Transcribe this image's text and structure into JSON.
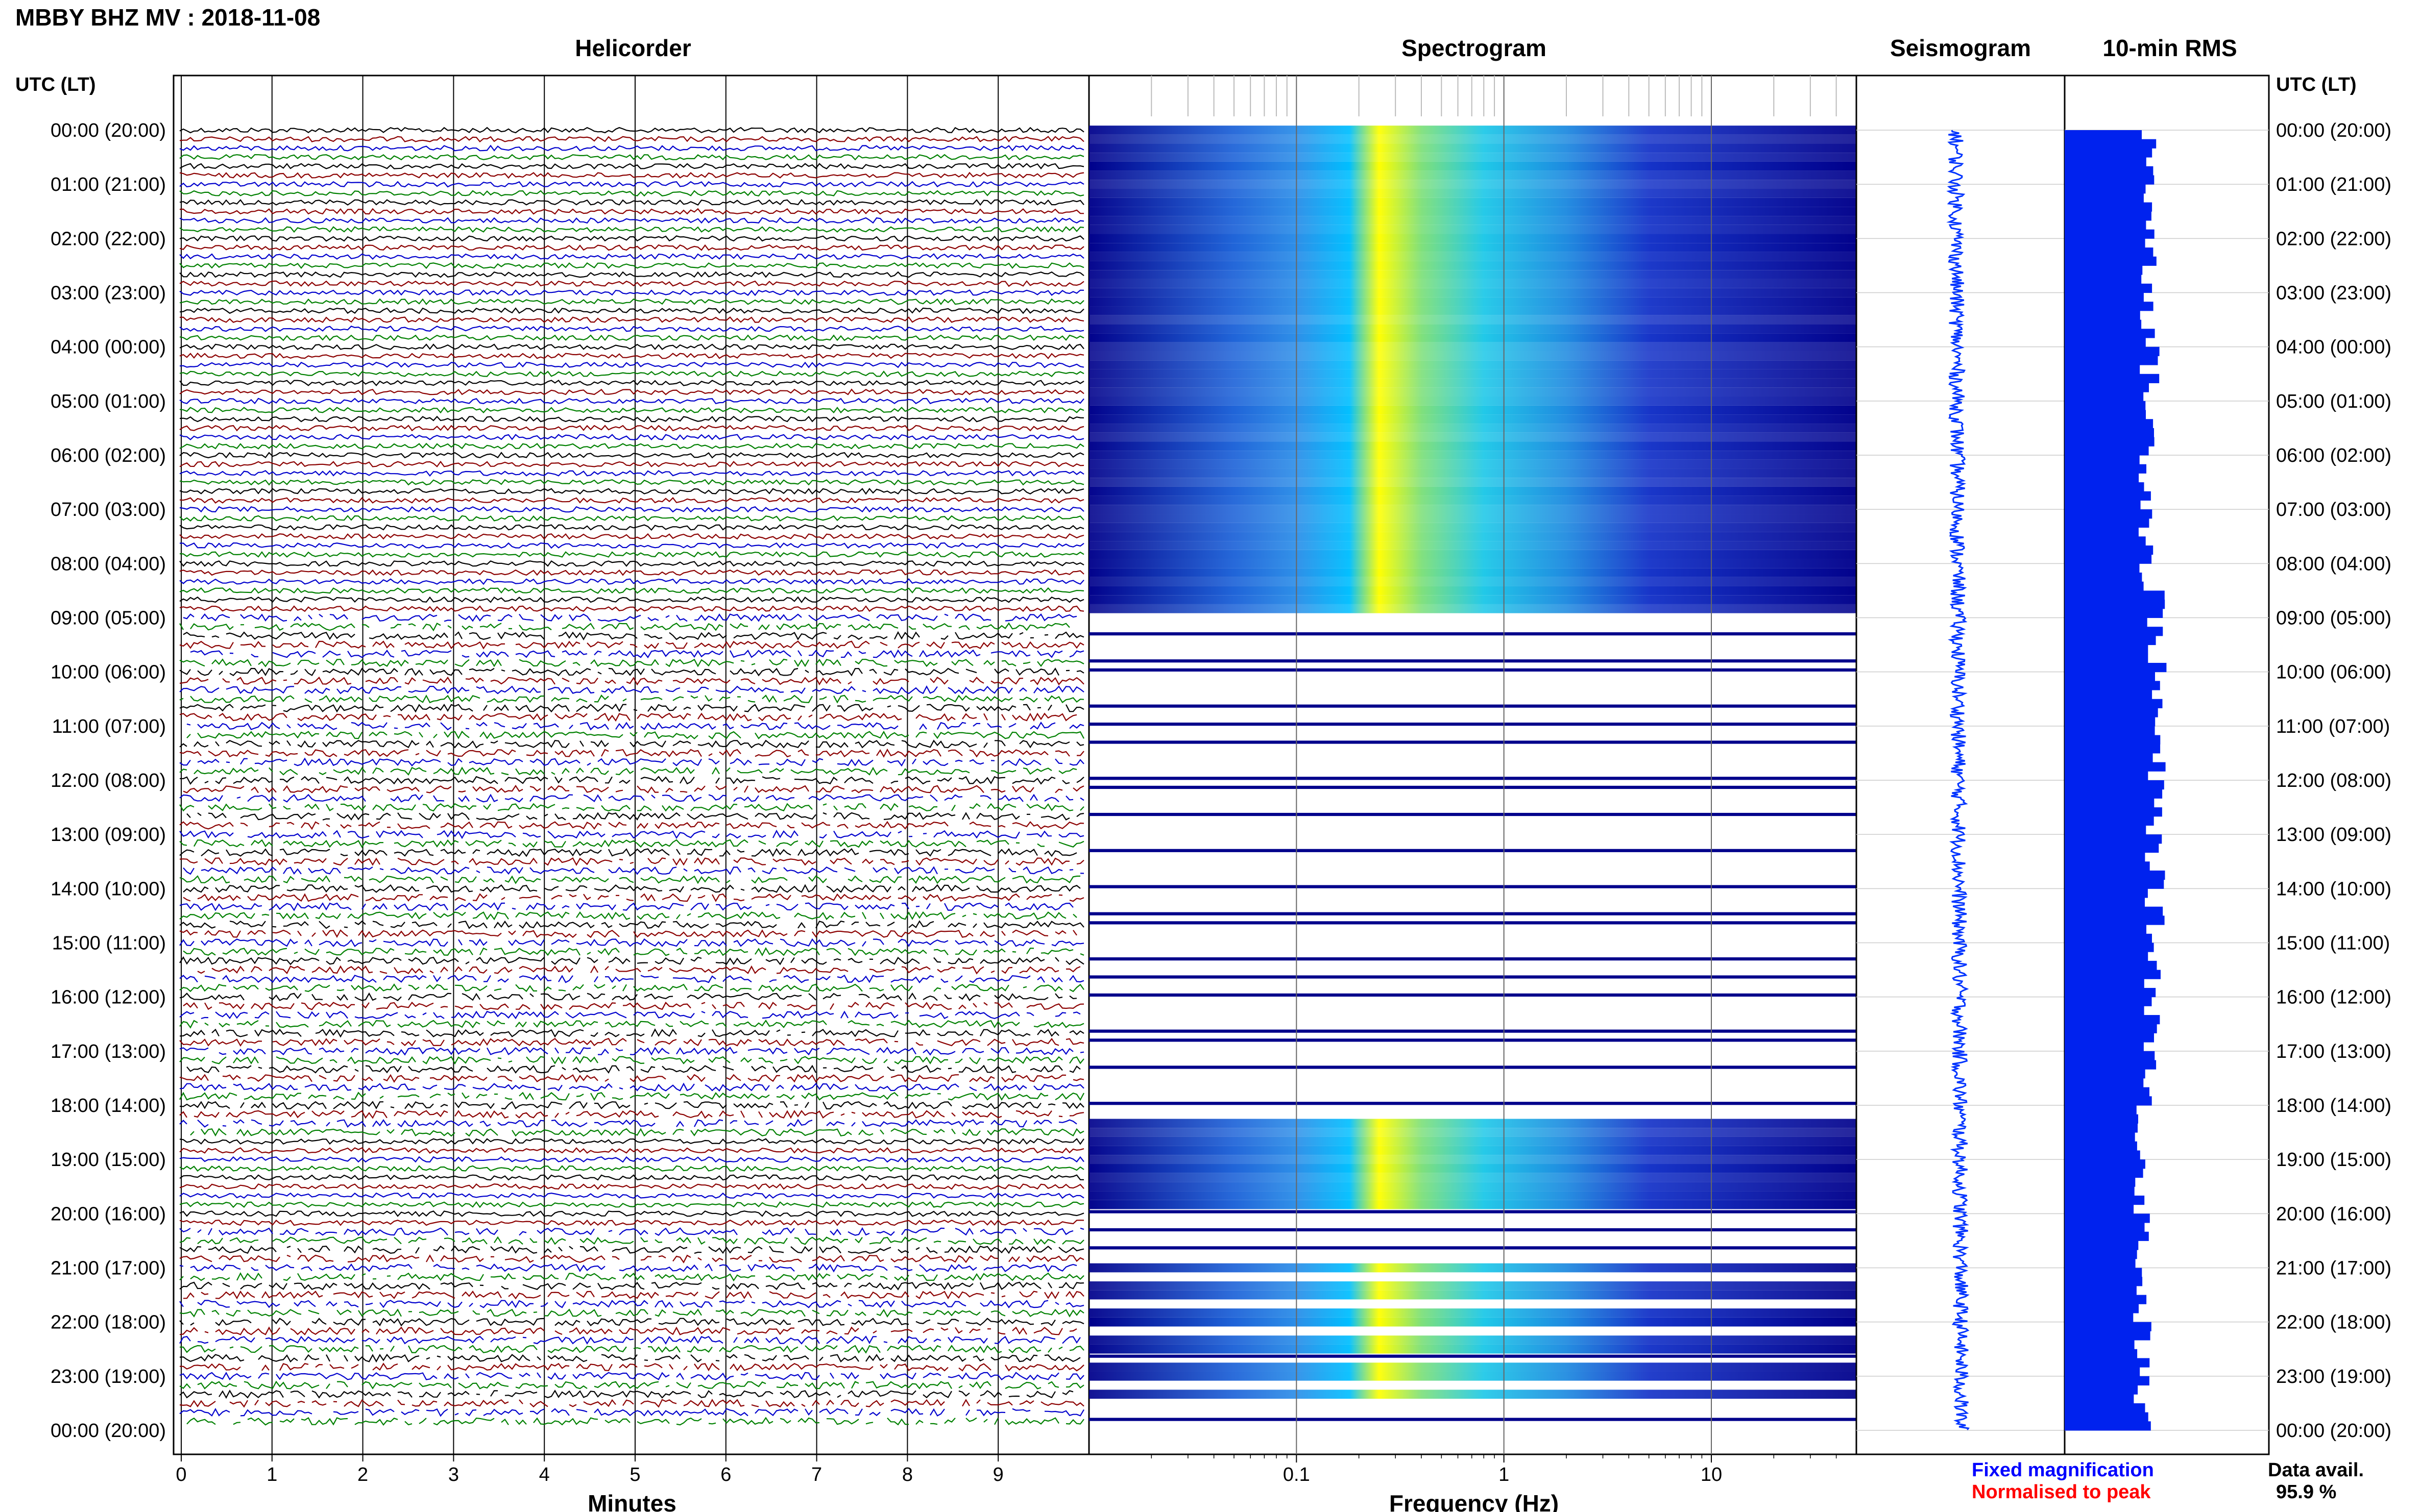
{
  "header": {
    "title": "MBBY BHZ MV : 2018-11-08",
    "utc_label": "UTC (LT)"
  },
  "panels": {
    "helicorder": "Helicorder",
    "spectrogram": "Spectrogram",
    "seismogram": "Seismogram",
    "rms": "10-min RMS"
  },
  "footer": {
    "fixed": "Fixed magnification",
    "normalised": "Normalised to peak",
    "avail_label": "Data avail.",
    "avail_value": "95.9 %"
  },
  "colors": {
    "trace_cycle": [
      "#000000",
      "#8b0000",
      "#0000cd",
      "#008000"
    ],
    "seismogram": "#0033ff",
    "rms": "#0022ee",
    "fixed_text": "#0000ff",
    "normalised_text": "#ff0000",
    "spec_low": "#00008b",
    "spec_mid": "#00bfff",
    "spec_high": "#ffff00"
  },
  "chart_data": [
    {
      "type": "line",
      "name": "helicorder",
      "title": "Helicorder",
      "xlabel": "Minutes",
      "xticks": [
        "0",
        "1",
        "2",
        "3",
        "4",
        "5",
        "6",
        "7",
        "8",
        "9"
      ],
      "xlim": [
        0,
        10
      ],
      "ylabels": [
        "00:00 (20:00)",
        "01:00 (21:00)",
        "02:00 (22:00)",
        "03:00 (23:00)",
        "04:00 (00:00)",
        "05:00 (01:00)",
        "06:00 (02:00)",
        "07:00 (03:00)",
        "08:00 (04:00)",
        "09:00 (05:00)",
        "10:00 (06:00)",
        "11:00 (07:00)",
        "12:00 (08:00)",
        "13:00 (09:00)",
        "14:00 (10:00)",
        "15:00 (11:00)",
        "16:00 (12:00)",
        "17:00 (13:00)",
        "18:00 (14:00)",
        "19:00 (15:00)",
        "20:00 (16:00)",
        "21:00 (17:00)",
        "22:00 (18:00)",
        "23:00 (19:00)",
        "00:00 (20:00)"
      ],
      "lines_per_hour": 6,
      "line_count": 144
    },
    {
      "type": "heatmap",
      "name": "spectrogram",
      "title": "Spectrogram",
      "xlabel": "Frequency (Hz)",
      "xscale": "log",
      "xlim": [
        0.01,
        50
      ],
      "xticks": [
        "0.1",
        "1",
        "10"
      ],
      "peak_frequency_hz": 0.25
    },
    {
      "type": "line",
      "name": "seismogram",
      "title": "Seismogram"
    },
    {
      "type": "bar",
      "name": "rms",
      "title": "10-min RMS",
      "interval_minutes": 10,
      "count": 144
    }
  ]
}
